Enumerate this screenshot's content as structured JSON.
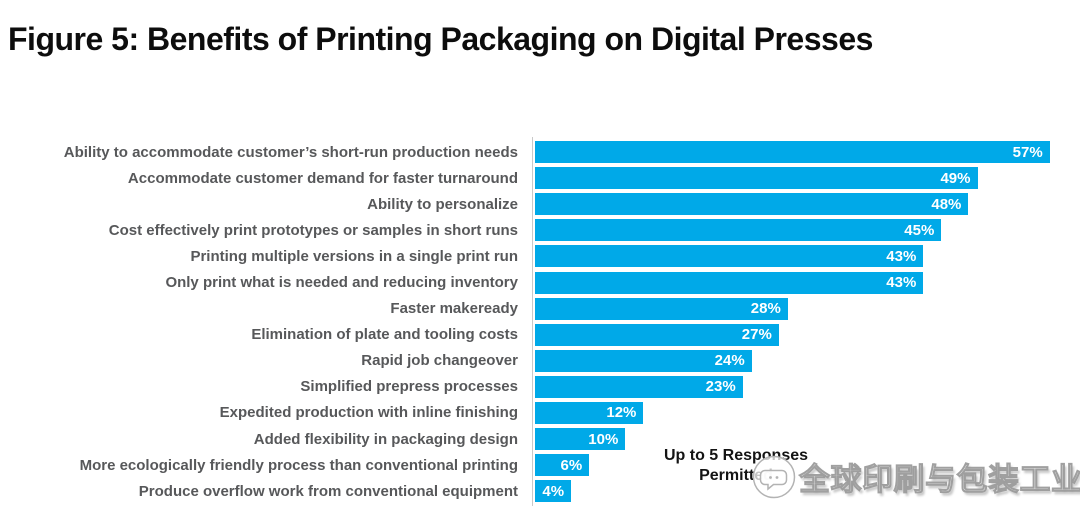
{
  "title": "Figure 5: Benefits of Printing Packaging on Digital Presses",
  "note": {
    "line1": "Up to 5 Responses",
    "line2": "Permitted"
  },
  "watermark": {
    "text": "全球印刷与包装工业",
    "icon": "chat-bubble-logo"
  },
  "colors": {
    "bar": "#00a9e8",
    "category_label": "#57585a",
    "value_label": "#ffffff",
    "title": "#0d0d0d",
    "axis_line": "#c9c9c9",
    "watermark_outline": "#b0b0b0"
  },
  "chart_data": {
    "type": "bar",
    "orientation": "horizontal",
    "title": "Figure 5: Benefits of Printing Packaging on Digital Presses",
    "xlabel": "",
    "ylabel": "",
    "xlim": [
      0,
      60
    ],
    "grid": false,
    "legend": "none",
    "value_label_position": "inside-end",
    "annotation": "Up to 5 Responses Permitted",
    "categories": [
      "Ability to accommodate customer’s short-run production needs",
      "Accommodate customer demand for faster turnaround",
      "Ability to personalize",
      "Cost effectively print prototypes or samples in short runs",
      "Printing multiple versions in a single print run",
      "Only print what is needed and reducing inventory",
      "Faster makeready",
      "Elimination of plate and tooling costs",
      "Rapid job changeover",
      "Simplified prepress processes",
      "Expedited production with inline finishing",
      "Added flexibility in packaging design",
      "More ecologically friendly process than conventional printing",
      "Produce overflow work from conventional equipment"
    ],
    "values": [
      57,
      49,
      48,
      45,
      43,
      43,
      28,
      27,
      24,
      23,
      12,
      10,
      6,
      4
    ],
    "value_labels": [
      "57%",
      "49%",
      "48%",
      "45%",
      "43%",
      "43%",
      "28%",
      "27%",
      "24%",
      "23%",
      "12%",
      "10%",
      "6%",
      "4%"
    ]
  }
}
